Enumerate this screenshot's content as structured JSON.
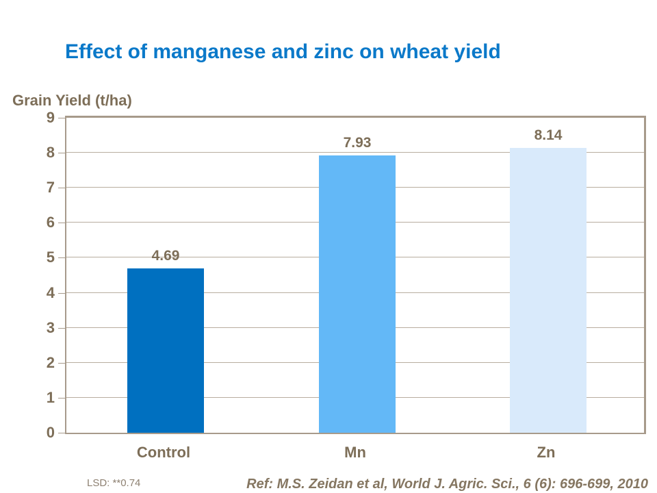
{
  "slide": {
    "reference": "Ref: M.S. Zeidan et al, World J. Agric. Sci., 6 (6): 696-699, 2010"
  },
  "chart_data": {
    "type": "bar",
    "title": "Effect of manganese and zinc on wheat yield",
    "ylabel": "Grain Yield (t/ha)",
    "xlabel": "",
    "categories": [
      "Control",
      "Mn",
      "Zn"
    ],
    "values": [
      4.69,
      7.93,
      8.14
    ],
    "data_labels": [
      "4.69",
      "7.93",
      "8.14"
    ],
    "ylim": [
      0,
      9
    ],
    "ytick_step": 1,
    "ytick_labels": [
      "0",
      "1",
      "2",
      "3",
      "4",
      "5",
      "6",
      "7",
      "8",
      "9"
    ],
    "grid": true,
    "plot_border": "boxed",
    "legend": false,
    "annotations": [
      "LSD: **0.74"
    ],
    "bar_colors": [
      "#0070C0",
      "#63B8F7",
      "#D9EAFB"
    ],
    "title_color": "#0b79c9",
    "text_color": "#7d6e58",
    "grid_color": "#b8ad9f",
    "axis_color": "#a79a8b",
    "background_color": "#ffffff"
  }
}
